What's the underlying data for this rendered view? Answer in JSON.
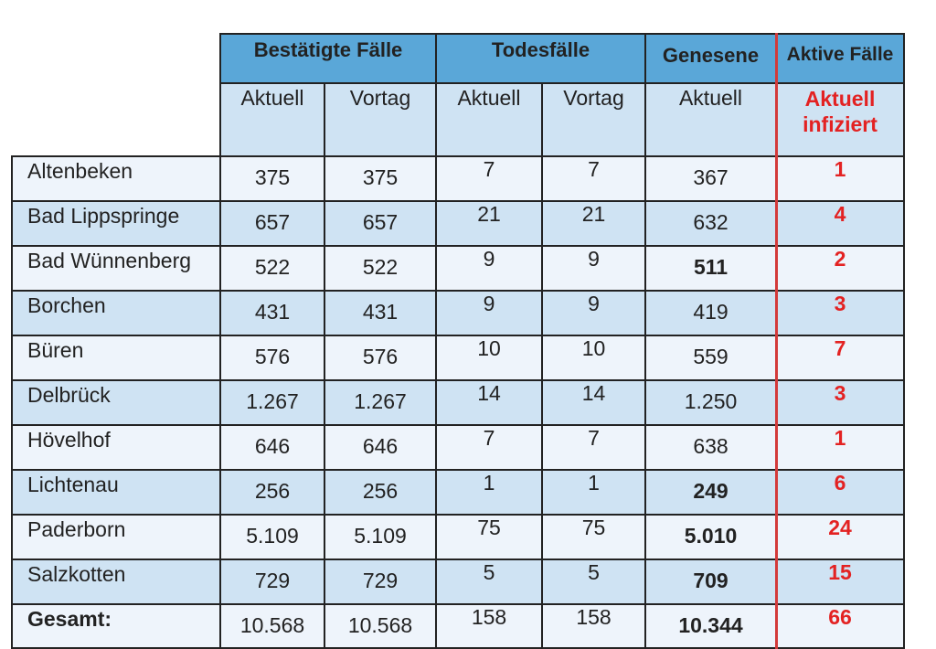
{
  "headers": {
    "bestaetigt": "Bestätigte Fälle",
    "todesfaelle": "Todesfälle",
    "genesene": "Genesene",
    "aktiv": "Aktive Fälle"
  },
  "subheaders": {
    "aktuell": "Aktuell",
    "vortag": "Vortag",
    "aktuell_infiziert": "Aktuell infiziert"
  },
  "rows": [
    {
      "name": "Altenbeken",
      "best_aktuell": "375",
      "best_vortag": "375",
      "tod_aktuell": "7",
      "tod_vortag": "7",
      "genesen": "367",
      "aktiv": "1"
    },
    {
      "name": "Bad Lippspringe",
      "best_aktuell": "657",
      "best_vortag": "657",
      "tod_aktuell": "21",
      "tod_vortag": "21",
      "genesen": "632",
      "aktiv": "4"
    },
    {
      "name": "Bad Wünnenberg",
      "best_aktuell": "522",
      "best_vortag": "522",
      "tod_aktuell": "9",
      "tod_vortag": "9",
      "genesen": "511",
      "aktiv": "2"
    },
    {
      "name": "Borchen",
      "best_aktuell": "431",
      "best_vortag": "431",
      "tod_aktuell": "9",
      "tod_vortag": "9",
      "genesen": "419",
      "aktiv": "3"
    },
    {
      "name": "Büren",
      "best_aktuell": "576",
      "best_vortag": "576",
      "tod_aktuell": "10",
      "tod_vortag": "10",
      "genesen": "559",
      "aktiv": "7"
    },
    {
      "name": "Delbrück",
      "best_aktuell": "1.267",
      "best_vortag": "1.267",
      "tod_aktuell": "14",
      "tod_vortag": "14",
      "genesen": "1.250",
      "aktiv": "3"
    },
    {
      "name": "Hövelhof",
      "best_aktuell": "646",
      "best_vortag": "646",
      "tod_aktuell": "7",
      "tod_vortag": "7",
      "genesen": "638",
      "aktiv": "1"
    },
    {
      "name": "Lichtenau",
      "best_aktuell": "256",
      "best_vortag": "256",
      "tod_aktuell": "1",
      "tod_vortag": "1",
      "genesen": "249",
      "aktiv": "6"
    },
    {
      "name": "Paderborn",
      "best_aktuell": "5.109",
      "best_vortag": "5.109",
      "tod_aktuell": "75",
      "tod_vortag": "75",
      "genesen": "5.010",
      "aktiv": "24"
    },
    {
      "name": "Salzkotten",
      "best_aktuell": "729",
      "best_vortag": "729",
      "tod_aktuell": "5",
      "tod_vortag": "5",
      "genesen": "709",
      "aktiv": "15"
    },
    {
      "name": "Gesamt:",
      "best_aktuell": "10.568",
      "best_vortag": "10.568",
      "tod_aktuell": "158",
      "tod_vortag": "158",
      "genesen": "10.344",
      "aktiv": "66"
    }
  ]
}
